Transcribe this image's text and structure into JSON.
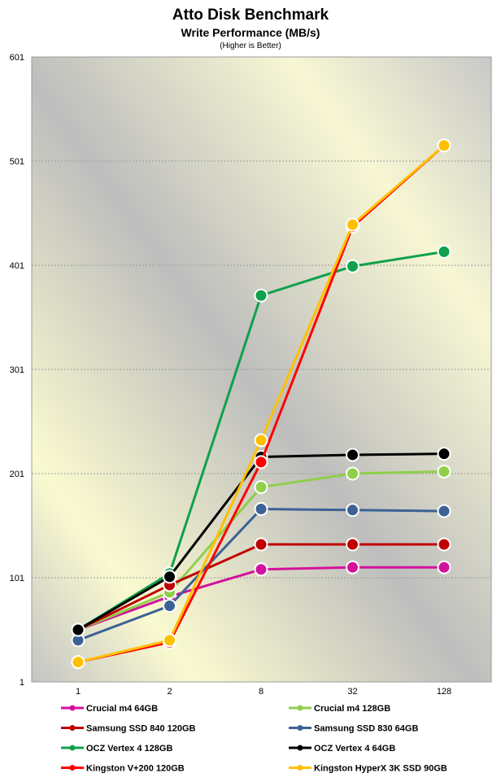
{
  "chart_data": {
    "type": "line",
    "title": "Atto Disk Benchmark",
    "subtitle": "Write Performance (MB/s)",
    "note": "(Higher is Better)",
    "x_categories": [
      "1",
      "2",
      "8",
      "32",
      "128"
    ],
    "y_ticks": [
      "1",
      "101",
      "201",
      "301",
      "401",
      "501",
      "601"
    ],
    "ylim": [
      1,
      601
    ],
    "grid": "horizontal",
    "legend_position": "bottom",
    "series": [
      {
        "name": "Crucial m4 64GB",
        "color": "#d4119d",
        "values": [
          51,
          83,
          109,
          111,
          111
        ]
      },
      {
        "name": "Crucial m4 128GB",
        "color": "#8fcf4a",
        "values": [
          51,
          87,
          188,
          201,
          203
        ]
      },
      {
        "name": "Samsung SSD 840 120GB",
        "color": "#c00000",
        "values": [
          51,
          94,
          133,
          133,
          133
        ]
      },
      {
        "name": "Samsung SSD 830 64GB",
        "color": "#3c6295",
        "values": [
          41,
          74,
          167,
          166,
          165
        ]
      },
      {
        "name": "OCZ Vertex 4 128GB",
        "color": "#0fa14b",
        "values": [
          51,
          105,
          372,
          400,
          414
        ]
      },
      {
        "name": "OCZ Vertex 4 64GB",
        "color": "#000000",
        "values": [
          51,
          102,
          217,
          219,
          220
        ]
      },
      {
        "name": "Kingston V+200 120GB",
        "color": "#ff0000",
        "values": [
          20,
          39,
          212,
          438,
          516
        ]
      },
      {
        "name": "Kingston HyperX 3K SSD 90GB",
        "color": "#ffc000",
        "values": [
          20,
          41,
          233,
          440,
          516
        ]
      }
    ]
  }
}
